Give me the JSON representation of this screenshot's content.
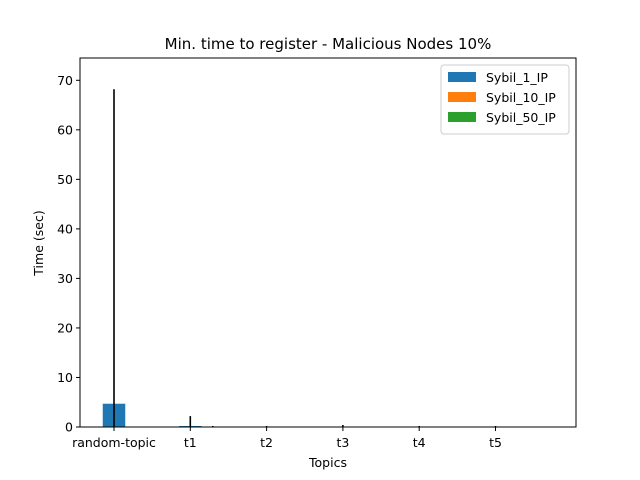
{
  "chart_data": {
    "type": "bar",
    "title": "Min. time to register - Malicious Nodes 10%",
    "xlabel": "Topics",
    "ylabel": "Time (sec)",
    "categories": [
      "random-topic",
      "t1",
      "t2",
      "t3",
      "t4",
      "t5"
    ],
    "ylim": [
      0,
      74.5
    ],
    "yticks": [
      0,
      10,
      20,
      30,
      40,
      50,
      60,
      70
    ],
    "series": [
      {
        "name": "Sybil_1_IP",
        "color": "#1f77b4",
        "values": [
          4.7,
          0.2,
          0.1,
          0.1,
          0.1,
          0.1
        ],
        "errors": [
          63.5,
          2.0,
          0.1,
          0.3,
          0.1,
          0.1
        ]
      },
      {
        "name": "Sybil_10_IP",
        "color": "#ff7f0e",
        "values": [
          0.1,
          0.1,
          0.1,
          0.1,
          0.1,
          0.1
        ],
        "errors": [
          0.0,
          0.1,
          0.0,
          0.0,
          0.0,
          0.0
        ]
      },
      {
        "name": "Sybil_50_IP",
        "color": "#2ca02c",
        "values": [
          0.1,
          0.1,
          0.1,
          0.1,
          0.1,
          0.1
        ],
        "errors": [
          0.0,
          0.0,
          0.0,
          0.0,
          0.0,
          0.0
        ]
      }
    ],
    "legend_position": "top-right",
    "grid": false
  }
}
